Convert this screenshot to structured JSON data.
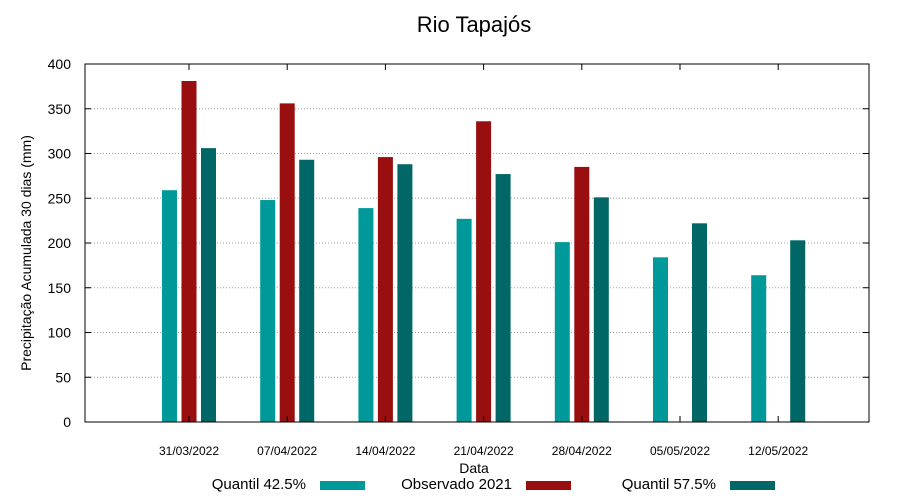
{
  "chart_data": {
    "type": "bar",
    "title": "Rio Tapajós",
    "xlabel": "Data",
    "ylabel": "Precipitação Acumulada 30 dias (mm)",
    "ylim": [
      0,
      400
    ],
    "yticks": [
      0,
      50,
      100,
      150,
      200,
      250,
      300,
      350,
      400
    ],
    "grid": true,
    "legend_position": "bottom",
    "categories": [
      "31/03/2022",
      "07/04/2022",
      "14/04/2022",
      "21/04/2022",
      "28/04/2022",
      "05/05/2022",
      "12/05/2022"
    ],
    "series": [
      {
        "name": "Quantil 42.5%",
        "color": "#009999",
        "values": [
          259,
          248,
          239,
          227,
          201,
          184,
          164
        ]
      },
      {
        "name": "Observado 2021",
        "color": "#990e0e",
        "values": [
          381,
          356,
          296,
          336,
          285,
          null,
          null
        ]
      },
      {
        "name": "Quantil 57.5%",
        "color": "#006666",
        "values": [
          306,
          293,
          288,
          277,
          251,
          222,
          203
        ]
      }
    ]
  }
}
